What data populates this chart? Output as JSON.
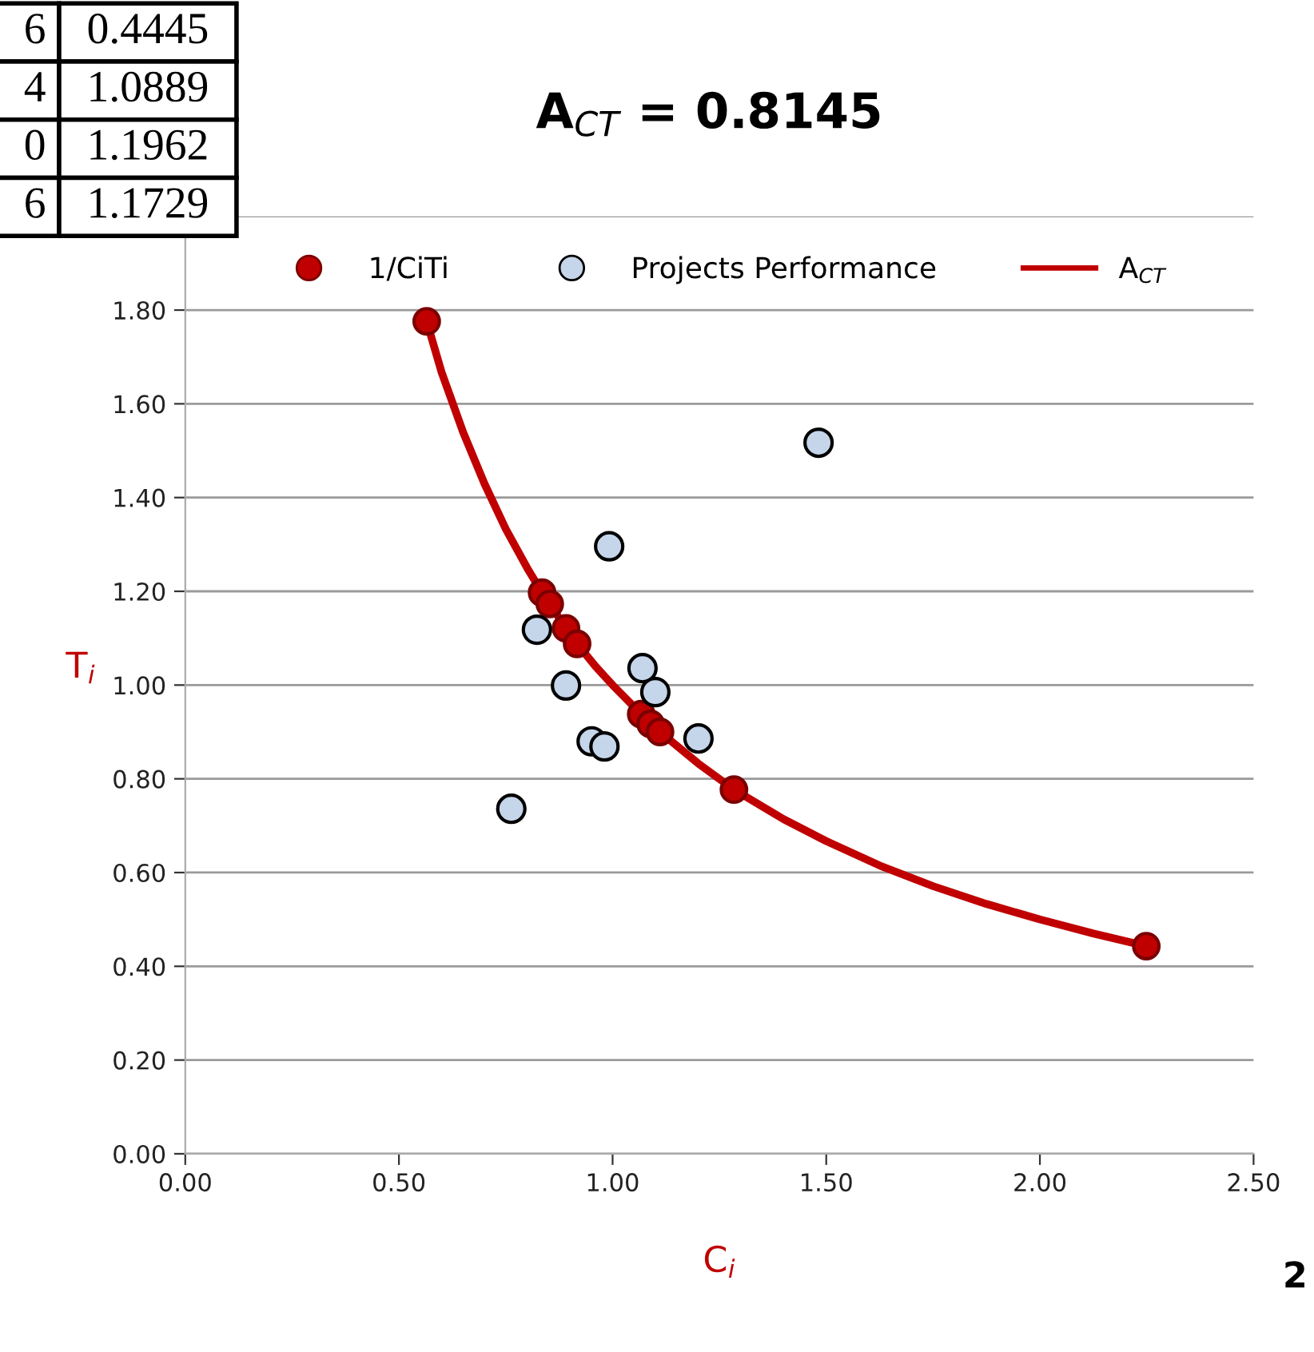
{
  "chart_data": {
    "type": "scatter",
    "title": "A$_{CT}$ = 0.8145",
    "xlabel": "C$_{i}$",
    "ylabel": "T$_{i}$",
    "xlim": [
      0,
      2.5
    ],
    "xticks": [
      {
        "value": 0,
        "label": "0.00"
      },
      {
        "value": 0.5,
        "label": "0.50"
      },
      {
        "value": 1.0,
        "label": "1.00"
      },
      {
        "value": 1.5,
        "label": "1.50"
      },
      {
        "value": 2.0,
        "label": "2.00"
      },
      {
        "value": 2.5,
        "label": "2.50"
      }
    ],
    "ylim": [
      0,
      2.0
    ],
    "yticks": [
      {
        "value": 0,
        "label": "0.00"
      },
      {
        "value": 0.2,
        "label": "0.20"
      },
      {
        "value": 0.4,
        "label": "0.40"
      },
      {
        "value": 0.6,
        "label": "0.60"
      },
      {
        "value": 0.8,
        "label": "0.80"
      },
      {
        "value": 1.0,
        "label": "1.00"
      },
      {
        "value": 1.2,
        "label": "1.20"
      },
      {
        "value": 1.4,
        "label": "1.40"
      },
      {
        "value": 1.6,
        "label": "1.60"
      },
      {
        "value": 1.8,
        "label": "1.80"
      },
      {
        "value": 2.0,
        "label": null
      }
    ],
    "grid": "y",
    "legend": "top",
    "marker": "circle",
    "series": [
      {
        "name": "1/CiTi",
        "color": "#c00000",
        "x": [
          0.565,
          0.835,
          0.853,
          0.891,
          0.917,
          1.067,
          1.089,
          1.111,
          1.284,
          2.249
        ],
        "values": [
          1.776,
          1.197,
          1.173,
          1.121,
          1.088,
          0.938,
          0.917,
          0.9,
          0.777,
          0.443
        ]
      },
      {
        "name": "Projects Performance",
        "color": "#c5d5ea",
        "x": [
          1.482,
          0.992,
          0.823,
          1.07,
          1.1,
          0.891,
          0.951,
          0.981,
          1.201,
          0.763
        ],
        "values": [
          1.517,
          1.296,
          1.118,
          1.036,
          0.985,
          0.999,
          0.88,
          0.869,
          0.886,
          0.736
        ]
      },
      {
        "name": "A$_{CT}$",
        "type": "line",
        "color": "#c00000",
        "marker": "none",
        "x": [
          0.565,
          0.6,
          0.65,
          0.7,
          0.75,
          0.8,
          0.835,
          0.853,
          0.891,
          0.917,
          0.96,
          1.0,
          1.067,
          1.089,
          1.111,
          1.2,
          1.284,
          1.4,
          1.5,
          1.625,
          1.75,
          1.875,
          2.0,
          2.125,
          2.249
        ],
        "values": [
          1.776,
          1.667,
          1.54,
          1.43,
          1.333,
          1.25,
          1.197,
          1.173,
          1.121,
          1.088,
          1.04,
          1.0,
          0.938,
          0.917,
          0.9,
          0.833,
          0.777,
          0.714,
          0.667,
          0.615,
          0.571,
          0.533,
          0.5,
          0.47,
          0.443
        ]
      }
    ],
    "annotations": [
      "6",
      "0.4445",
      "4",
      "1.0889",
      "0",
      "1.1962",
      "6",
      "1.1729",
      "2"
    ]
  }
}
